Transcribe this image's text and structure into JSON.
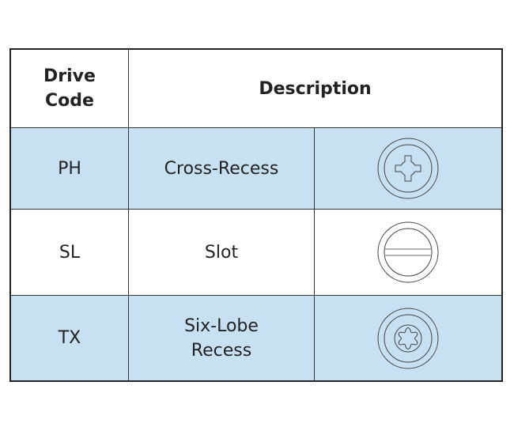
{
  "header": {
    "code": "Drive Code",
    "code_line1": "Drive",
    "code_line2": "Code",
    "description": "Description"
  },
  "rows": [
    {
      "code": "PH",
      "description": "Cross-Recess",
      "icon": "phillips-drive-icon"
    },
    {
      "code": "SL",
      "description": "Slot",
      "icon": "slotted-drive-icon"
    },
    {
      "code": "TX",
      "description_line1": "Six-Lobe",
      "description_line2": "Recess",
      "icon": "torx-drive-icon"
    }
  ],
  "colors": {
    "row_highlight": "#c7e0f2",
    "border": "#333333"
  }
}
